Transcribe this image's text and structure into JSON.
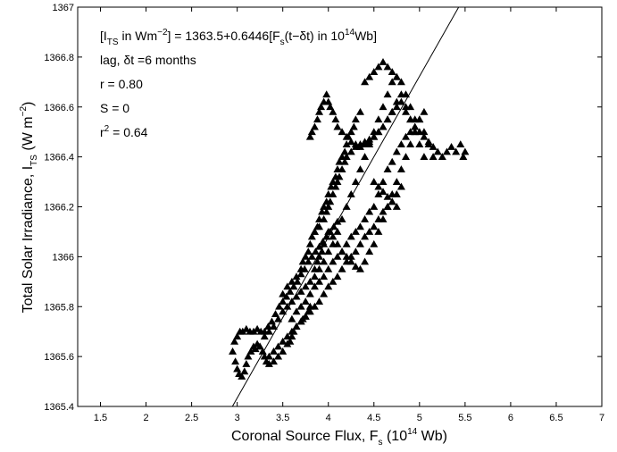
{
  "chart_data": {
    "type": "scatter",
    "xlabel": {
      "main": "Coronal Source Flux, F",
      "sub": "s",
      "rest": " (10",
      "sup": "14",
      "end": " Wb)"
    },
    "ylabel": {
      "main": "Total Solar Irradiance, I",
      "sub": "TS",
      "rest": " (W m",
      "sup": "−2",
      "end": ")"
    },
    "xlim": [
      1.25,
      7
    ],
    "ylim": [
      1365.4,
      1367
    ],
    "xticks": [
      "1.5",
      "2",
      "2.5",
      "3",
      "3.5",
      "4",
      "4.5",
      "5",
      "5.5",
      "6",
      "6.5",
      "7"
    ],
    "yticks": [
      "1365.4",
      "1365.6",
      "1365.8",
      "1366",
      "1366.2",
      "1366.4",
      "1366.6",
      "1366.8",
      "1367"
    ],
    "grid": false,
    "annotations": {
      "eq_open": "[I",
      "eq_sub": "TS",
      "eq_mid": " in Wm",
      "eq_sup": "−2",
      "eq_after": "] = 1363.5+0.6446[F",
      "eq_sub2": "s",
      "eq_after2": "(t−δt) in 10",
      "eq_sup2": "14",
      "eq_end": "Wb]",
      "lag": "lag, δt =6 months",
      "r": "r = 0.80",
      "s": "S = 0",
      "r2_pre": "r",
      "r2_sup": "2",
      "r2_post": " = 0.64"
    },
    "fit_line": {
      "intercept": 1363.5,
      "slope": 0.6446
    },
    "series": [
      {
        "marker": "filled-triangle",
        "x": [
          2.95,
          2.98,
          3.0,
          3.02,
          3.05,
          3.08,
          3.1,
          3.12,
          3.15,
          3.18,
          3.2,
          3.22,
          3.25,
          3.28,
          3.3,
          3.32,
          3.35,
          3.4,
          3.45,
          3.5,
          3.55,
          3.58,
          3.6,
          3.62,
          3.65,
          3.7,
          3.72,
          3.75,
          3.78,
          3.8,
          2.97,
          3.0,
          3.03,
          3.06,
          3.1,
          3.14,
          3.18,
          3.22,
          3.26,
          3.3,
          3.34,
          3.38,
          3.42,
          3.46,
          3.5,
          3.54,
          3.58,
          3.62,
          3.66,
          3.7,
          3.74,
          3.78,
          3.82,
          3.86,
          3.9,
          3.94,
          3.98,
          4.02,
          4.06,
          4.1,
          3.3,
          3.35,
          3.4,
          3.45,
          3.5,
          3.55,
          3.6,
          3.65,
          3.7,
          3.75,
          3.8,
          3.85,
          3.9,
          3.95,
          4.0,
          4.05,
          4.1,
          4.15,
          4.2,
          4.25,
          4.3,
          4.35,
          4.4,
          4.45,
          4.5,
          4.55,
          4.6,
          4.65,
          4.7,
          4.75,
          3.5,
          3.55,
          3.6,
          3.65,
          3.7,
          3.72,
          3.75,
          3.78,
          3.8,
          3.82,
          3.85,
          3.88,
          3.9,
          3.93,
          3.95,
          3.98,
          4.0,
          4.03,
          4.05,
          4.08,
          4.1,
          4.12,
          4.15,
          4.18,
          4.2,
          4.22,
          4.25,
          4.28,
          4.3,
          4.35,
          3.85,
          3.9,
          3.95,
          3.98,
          4.0,
          4.02,
          4.05,
          4.08,
          4.1,
          4.12,
          4.15,
          4.18,
          4.2,
          4.25,
          4.3,
          4.35,
          4.4,
          4.45,
          4.5,
          4.55,
          4.6,
          4.65,
          4.7,
          4.75,
          4.8,
          4.85,
          4.9,
          4.95,
          5.0,
          5.05,
          3.8,
          3.82,
          3.85,
          3.88,
          3.9,
          3.92,
          3.95,
          3.98,
          4.0,
          4.02,
          4.05,
          4.08,
          4.1,
          4.15,
          4.2,
          4.25,
          4.3,
          4.35,
          4.4,
          4.45,
          4.5,
          4.55,
          4.6,
          4.65,
          4.7,
          4.75,
          4.8,
          4.85,
          4.9,
          4.95,
          4.4,
          4.45,
          4.5,
          4.55,
          4.6,
          4.65,
          4.7,
          4.75,
          4.8,
          4.85,
          4.9,
          4.95,
          5.0,
          5.05,
          5.1,
          5.15,
          5.2,
          5.25,
          5.3,
          5.35,
          5.4,
          5.45,
          5.48,
          5.5,
          4.5,
          4.55,
          4.6,
          4.65,
          4.7,
          4.75,
          3.85,
          3.88,
          3.9,
          3.93,
          3.95,
          3.98,
          4.0,
          4.05,
          4.1,
          4.15,
          4.2,
          4.25,
          4.3,
          4.35,
          4.4,
          4.45,
          4.5,
          4.55,
          4.6,
          4.65,
          4.7,
          4.75,
          4.8,
          4.85,
          4.9,
          4.95,
          5.0,
          5.05,
          5.1,
          5.15,
          3.6,
          3.65,
          3.7,
          3.75,
          3.8,
          3.85,
          3.9,
          3.95,
          4.0,
          4.05,
          4.1,
          4.15,
          4.2,
          4.25,
          4.3,
          4.35,
          4.4,
          4.45,
          4.5,
          4.55,
          4.6,
          4.65,
          4.7,
          4.75,
          4.8,
          4.85,
          4.9,
          4.95,
          5.0,
          5.05,
          3.35,
          3.4,
          3.45,
          3.5,
          3.55,
          3.6,
          3.65,
          3.7,
          3.75,
          3.8,
          3.85,
          3.9,
          3.95,
          4.0,
          4.05,
          4.1,
          4.15,
          4.2,
          4.25,
          4.3,
          4.35,
          4.4,
          4.45,
          4.5,
          4.55,
          4.6,
          4.65,
          4.7,
          4.75,
          4.8
        ],
        "y": [
          1365.62,
          1365.58,
          1365.55,
          1365.53,
          1365.52,
          1365.54,
          1365.57,
          1365.6,
          1365.62,
          1365.64,
          1365.63,
          1365.65,
          1365.64,
          1365.62,
          1365.6,
          1365.58,
          1365.57,
          1365.58,
          1365.6,
          1365.62,
          1365.65,
          1365.66,
          1365.68,
          1365.7,
          1365.72,
          1365.74,
          1365.75,
          1365.76,
          1365.78,
          1365.8,
          1365.66,
          1365.68,
          1365.7,
          1365.7,
          1365.71,
          1365.7,
          1365.7,
          1365.71,
          1365.7,
          1365.7,
          1365.72,
          1365.74,
          1365.77,
          1365.8,
          1365.82,
          1365.84,
          1365.86,
          1365.88,
          1365.9,
          1365.93,
          1365.95,
          1365.98,
          1366.0,
          1366.02,
          1366.04,
          1366.06,
          1366.08,
          1366.1,
          1366.12,
          1366.14,
          1365.68,
          1365.7,
          1365.72,
          1365.75,
          1365.78,
          1365.8,
          1365.82,
          1365.84,
          1365.86,
          1365.88,
          1365.9,
          1365.92,
          1365.95,
          1365.98,
          1366.02,
          1366.05,
          1366.1,
          1366.15,
          1366.2,
          1366.25,
          1366.3,
          1366.35,
          1366.4,
          1366.45,
          1366.5,
          1366.55,
          1366.6,
          1366.65,
          1366.7,
          1366.72,
          1365.85,
          1365.88,
          1365.9,
          1365.92,
          1365.95,
          1365.98,
          1366.0,
          1366.02,
          1366.05,
          1366.08,
          1366.1,
          1366.12,
          1366.15,
          1366.18,
          1366.2,
          1366.22,
          1366.25,
          1366.28,
          1366.3,
          1366.32,
          1366.35,
          1366.38,
          1366.4,
          1366.42,
          1366.45,
          1366.48,
          1366.5,
          1366.52,
          1366.55,
          1366.58,
          1366.1,
          1366.12,
          1366.15,
          1366.18,
          1366.2,
          1366.22,
          1366.25,
          1366.28,
          1366.3,
          1366.32,
          1366.35,
          1366.38,
          1366.4,
          1366.42,
          1366.44,
          1366.45,
          1366.46,
          1366.47,
          1366.48,
          1366.5,
          1366.52,
          1366.55,
          1366.58,
          1366.62,
          1366.65,
          1366.6,
          1366.55,
          1366.5,
          1366.45,
          1366.4,
          1366.48,
          1366.5,
          1366.52,
          1366.55,
          1366.58,
          1366.6,
          1366.62,
          1366.65,
          1366.62,
          1366.6,
          1366.58,
          1366.55,
          1366.52,
          1366.5,
          1366.48,
          1366.46,
          1366.45,
          1366.44,
          1366.45,
          1366.46,
          1366.48,
          1366.5,
          1366.52,
          1366.55,
          1366.58,
          1366.6,
          1366.62,
          1366.58,
          1366.55,
          1366.52,
          1366.7,
          1366.72,
          1366.74,
          1366.76,
          1366.78,
          1366.76,
          1366.74,
          1366.72,
          1366.7,
          1366.65,
          1366.6,
          1366.55,
          1366.5,
          1366.48,
          1366.46,
          1366.44,
          1366.42,
          1366.4,
          1366.42,
          1366.44,
          1366.42,
          1366.45,
          1366.4,
          1366.42,
          1366.3,
          1366.28,
          1366.26,
          1366.24,
          1366.22,
          1366.2,
          1365.95,
          1365.98,
          1366.0,
          1366.02,
          1366.05,
          1366.08,
          1366.1,
          1366.08,
          1366.05,
          1366.02,
          1366.0,
          1365.98,
          1365.96,
          1365.95,
          1365.98,
          1366.02,
          1366.05,
          1366.1,
          1366.15,
          1366.2,
          1366.25,
          1366.3,
          1366.35,
          1366.4,
          1366.45,
          1366.5,
          1366.55,
          1366.5,
          1366.45,
          1366.4,
          1365.75,
          1365.78,
          1365.8,
          1365.82,
          1365.85,
          1365.88,
          1365.9,
          1365.92,
          1365.95,
          1365.98,
          1366.0,
          1366.02,
          1366.05,
          1366.08,
          1366.1,
          1366.12,
          1366.15,
          1366.18,
          1366.2,
          1366.25,
          1366.3,
          1366.35,
          1366.38,
          1366.42,
          1366.45,
          1366.48,
          1366.5,
          1366.52,
          1366.55,
          1366.58,
          1365.6,
          1365.62,
          1365.64,
          1365.66,
          1365.68,
          1365.7,
          1365.72,
          1365.74,
          1365.76,
          1365.78,
          1365.8,
          1365.82,
          1365.85,
          1365.88,
          1365.9,
          1365.92,
          1365.95,
          1365.98,
          1366.0,
          1366.02,
          1366.05,
          1366.08,
          1366.1,
          1366.12,
          1366.15,
          1366.18,
          1366.2,
          1366.22,
          1366.25,
          1366.28
        ]
      }
    ]
  }
}
